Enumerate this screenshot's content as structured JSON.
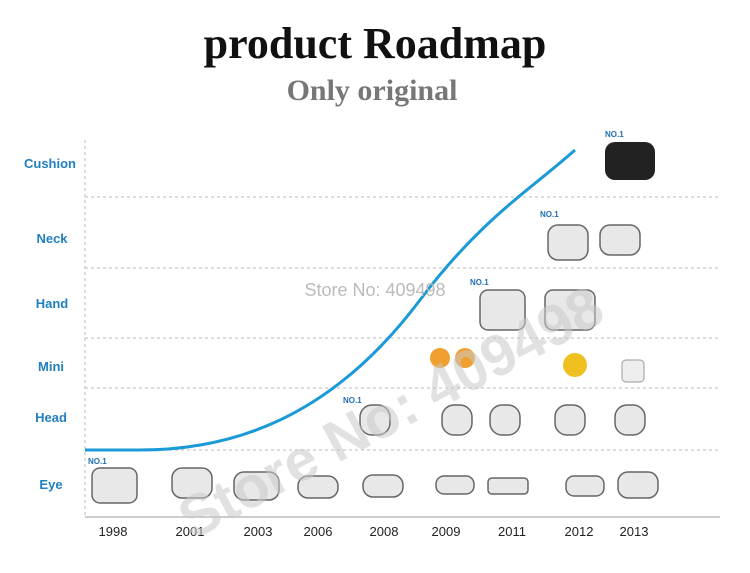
{
  "header": {
    "title": "product Roadmap",
    "subtitle": "Only original"
  },
  "rows": [
    "Cushion",
    "Neck",
    "Hand",
    "Mini",
    "Head",
    "Eye"
  ],
  "years": [
    "1998",
    "2001",
    "2003",
    "2006",
    "2008",
    "2009",
    "2011",
    "2012",
    "2013"
  ],
  "badges": [
    "NO.1",
    "NO.1",
    "NO.1",
    "NO.1",
    "NO.1"
  ],
  "watermarks": [
    "Store No: 409498",
    "Store No: 409498"
  ]
}
